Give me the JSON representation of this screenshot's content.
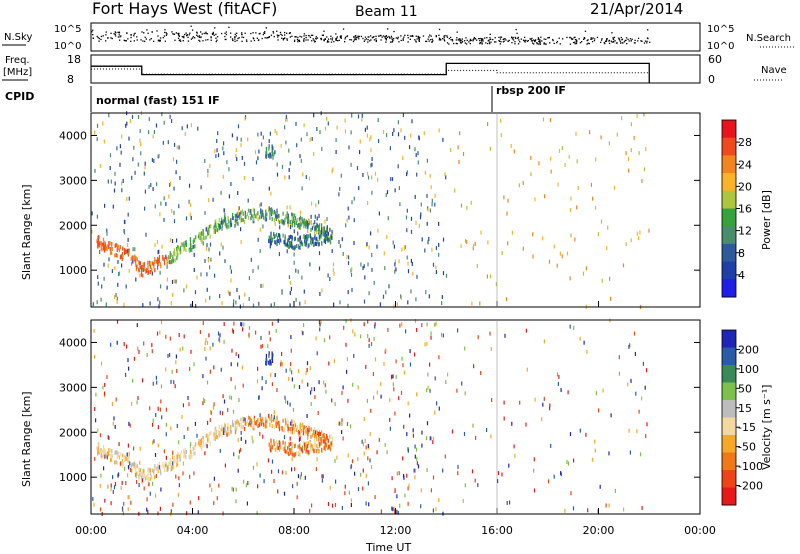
{
  "header": {
    "title": "Fort Hays West (fitACF)",
    "beam": "Beam 11",
    "date": "21/Apr/2014"
  },
  "noise_panel": {
    "left_label": "N.Sky",
    "right_label": "N.Search",
    "ticks_left": [
      "10^5",
      "10^0"
    ],
    "ticks_right": [
      "10^5",
      "10^0"
    ]
  },
  "freq_panel": {
    "left_label_1": "Freq.",
    "left_label_2": "[MHz]",
    "right_label": "Nave",
    "ticks_left": [
      "18",
      "8"
    ],
    "ticks_right": [
      "60",
      "0"
    ]
  },
  "cpid": {
    "label": "CPID",
    "programs": [
      {
        "name": "normal (fast) 151 IF",
        "start_h": 0,
        "end_h": 16
      },
      {
        "name": "rbsp 200 IF",
        "start_h": 16,
        "end_h": 24
      }
    ]
  },
  "power_panel": {
    "ylabel": "Slant Range [km]",
    "yticks": [
      "4000",
      "3000",
      "2000",
      "1000"
    ],
    "colorbar_label": "Power [dB]",
    "colorbar_ticks": [
      "28",
      "24",
      "20",
      "16",
      "12",
      "8",
      "4"
    ],
    "colorbar_colors": [
      "#e8141c",
      "#f04a1c",
      "#f4841e",
      "#f9b328",
      "#aec63c",
      "#35a33c",
      "#4a8d6c",
      "#2c5a9a",
      "#1f3fa8",
      "#1e1ee8"
    ]
  },
  "velocity_panel": {
    "ylabel": "Slant Range [km]",
    "yticks": [
      "4000",
      "3000",
      "2000",
      "1000"
    ],
    "colorbar_label": "Velocity [m s⁻¹]",
    "colorbar_ticks": [
      "200",
      "100",
      "50",
      "15",
      "-15",
      "-50",
      "-100",
      "-200"
    ],
    "colorbar_colors": [
      "#1e24b6",
      "#2a5aa8",
      "#3a8a58",
      "#7cc24a",
      "#bcbcbc",
      "#f3d9a0",
      "#f8a828",
      "#f07818",
      "#ee4418",
      "#e81818"
    ]
  },
  "xaxis": {
    "label": "Time UT",
    "ticks": [
      "00:00",
      "04:00",
      "08:00",
      "12:00",
      "16:00",
      "20:00",
      "00:00"
    ]
  },
  "chart_data": {
    "type": "heatmap",
    "title": "Fort Hays West (fitACF)",
    "xlabel": "Time UT",
    "ylabel": "Slant Range [km]",
    "x_range_hours": [
      0,
      24
    ],
    "y_range_km": [
      180,
      4500
    ],
    "data_end_hour": 22,
    "frequency_mhz": [
      {
        "start_h": 0,
        "end_h": 2,
        "value": 14
      },
      {
        "start_h": 2,
        "end_h": 14,
        "value": 11
      },
      {
        "start_h": 14,
        "end_h": 22,
        "value": 15
      }
    ],
    "nave": [
      {
        "start_h": 0,
        "end_h": 2,
        "value": 30
      },
      {
        "start_h": 2,
        "end_h": 14,
        "value": 19
      },
      {
        "start_h": 14,
        "end_h": 16,
        "value": 27
      },
      {
        "start_h": 16,
        "end_h": 22,
        "value": 22
      }
    ],
    "backscatter_band": {
      "description_points_hour_km": [
        [
          0,
          1700
        ],
        [
          1.5,
          1300
        ],
        [
          2,
          1000
        ],
        [
          3,
          1250
        ],
        [
          4,
          1600
        ],
        [
          5,
          2000
        ],
        [
          6,
          2200
        ],
        [
          7,
          2250
        ],
        [
          8,
          2100
        ],
        [
          9,
          1900
        ],
        [
          9.5,
          1700
        ]
      ],
      "second_band_hour_km": [
        [
          7,
          1700
        ],
        [
          8,
          1600
        ],
        [
          9,
          1700
        ],
        [
          9.5,
          1800
        ]
      ]
    },
    "power_db_range": [
      0,
      30
    ],
    "velocity_range": [
      -200,
      200
    ]
  }
}
